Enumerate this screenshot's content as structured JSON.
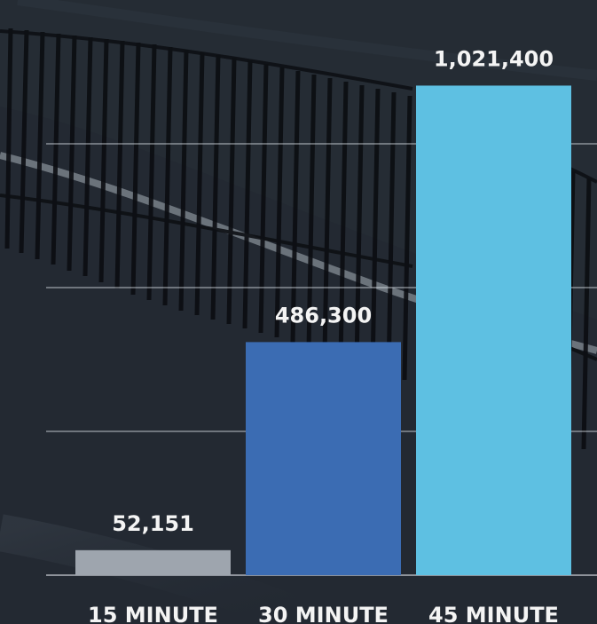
{
  "chart_data": {
    "type": "bar",
    "categories": [
      "15 MINUTE",
      "30 MINUTE",
      "45 MINUTE"
    ],
    "values": [
      52151,
      486300,
      1021400
    ],
    "value_labels": [
      "52,151",
      "486,300",
      "1,021,400"
    ],
    "colors": [
      "#9ea5ae",
      "#3b6cb3",
      "#5ec0e2"
    ],
    "ylim": [
      0,
      1200000
    ],
    "grid": true,
    "legend": "none",
    "background_scene": "fence-and-road-photo"
  }
}
